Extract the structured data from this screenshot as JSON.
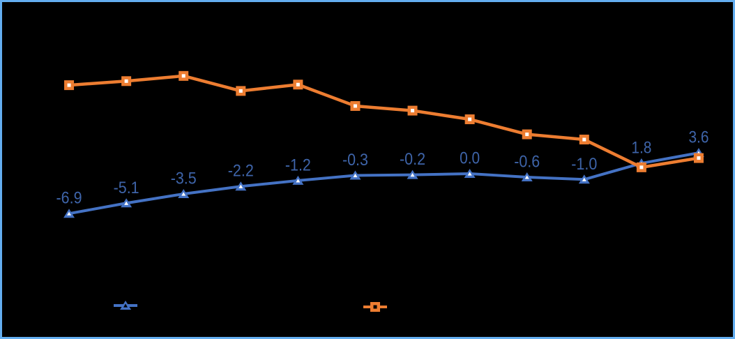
{
  "frame": {
    "background_color": "#000000",
    "border_color": "#64AEF0"
  },
  "chart_data": {
    "type": "line",
    "title": "",
    "xlabel": "",
    "ylabel": "",
    "x": [
      1,
      2,
      3,
      4,
      5,
      6,
      7,
      8,
      9,
      10,
      11,
      12
    ],
    "ylim": [
      -15.8,
      25.2
    ],
    "grid": false,
    "legend_position": "bottom",
    "label_color": "#3E64A9",
    "series": [
      {
        "name": "blue-triangle-series",
        "color": "#4472C4",
        "marker": "triangle",
        "line_width": 4,
        "labels_shown": true,
        "values": [
          -6.9,
          -5.1,
          -3.5,
          -2.2,
          -1.2,
          -0.3,
          -0.2,
          0.0,
          -0.6,
          -1.0,
          1.8,
          3.6
        ],
        "labels": [
          "-6.9",
          "-5.1",
          "-3.5",
          "-2.2",
          "-1.2",
          "-0.3",
          "-0.2",
          "0.0",
          "-0.6",
          "-1.0",
          "1.8",
          "3.6"
        ]
      },
      {
        "name": "orange-square-series",
        "color": "#ED7D31",
        "marker": "square",
        "line_width": 4.5,
        "labels_shown": false,
        "values_estimated_from_pixels": true,
        "values": [
          15.3,
          16.0,
          16.9,
          14.3,
          15.4,
          11.7,
          10.9,
          9.4,
          6.8,
          5.9,
          1.1,
          2.7
        ]
      }
    ],
    "legend": {
      "items": [
        {
          "series": "blue-triangle-series",
          "marker": "triangle",
          "color": "#4472C4"
        },
        {
          "series": "orange-square-series",
          "marker": "square",
          "color": "#ED7D31"
        }
      ]
    }
  }
}
